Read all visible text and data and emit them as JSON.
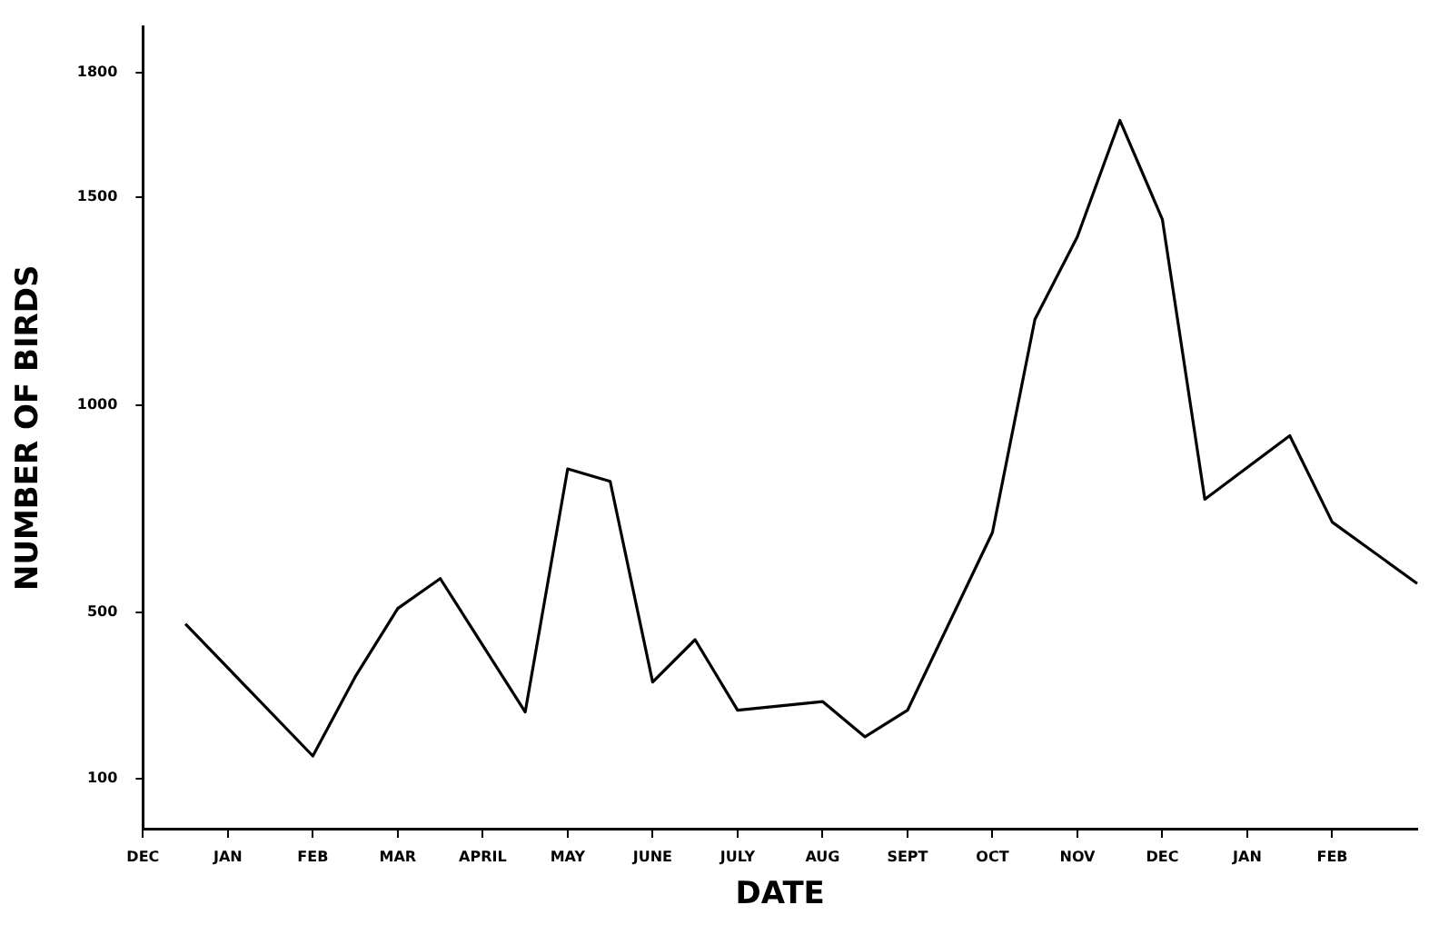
{
  "chart_data": {
    "type": "line",
    "xlabel": "DATE",
    "ylabel": "NUMBER OF BIRDS",
    "categories": [
      "DEC",
      null,
      "JAN",
      null,
      "FEB",
      null,
      "MAR",
      null,
      "APRIL",
      null,
      "MAY",
      null,
      "JUNE",
      null,
      "JULY",
      null,
      "AUG",
      null,
      "SEPT",
      null,
      "OCT",
      null,
      "NOV",
      null,
      "DEC",
      null,
      "JAN",
      null,
      "FEB",
      null,
      null
    ],
    "series": [
      {
        "color": "#000000",
        "values": [
          null,
          473,
          null,
          null,
          155,
          346,
          510,
          582,
          null,
          261,
          846,
          816,
          333,
          435,
          265,
          null,
          286,
          201,
          265,
          null,
          693,
          1206,
          1405,
          1685,
          1447,
          773,
          null,
          926,
          718,
          null,
          570
        ]
      }
    ],
    "ylim": [
      -20,
      1910
    ],
    "yticks": [
      100,
      500,
      1000,
      1500,
      1800
    ],
    "grid": false,
    "legend": false,
    "marker": "none",
    "line_style": "solid"
  }
}
